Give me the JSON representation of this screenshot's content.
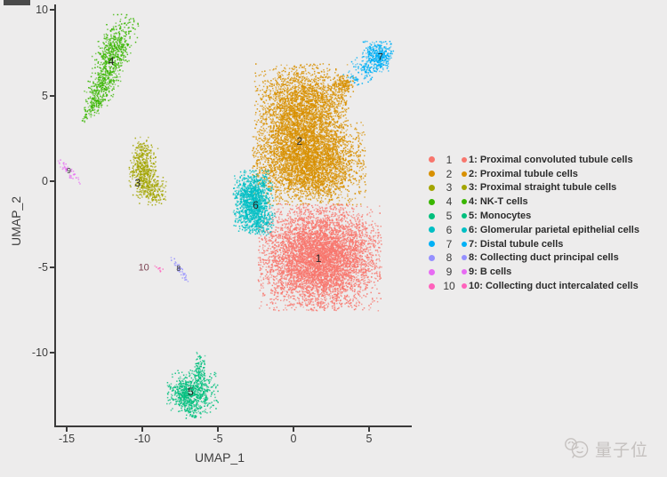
{
  "figure": {
    "background": "#edecec",
    "axis_color": "#3b3b3b"
  },
  "chart_data": {
    "type": "scatter",
    "title": "",
    "xlabel": "UMAP_1",
    "ylabel": "UMAP_2",
    "xlim": [
      -15.7,
      7.8
    ],
    "ylim": [
      -14.3,
      10.3
    ],
    "x_ticks": [
      -15,
      -10,
      -5,
      0,
      5
    ],
    "y_ticks": [
      10,
      5,
      0,
      -5,
      -10
    ],
    "grid": false,
    "legend_position": "right",
    "clusters": [
      {
        "id": "2",
        "name": "Proximal tubule cells",
        "color": "#D89000",
        "label_pos": [
          0.4,
          2.35
        ],
        "label_size": 12,
        "blobs": [
          [
            0.5,
            4.1,
            1.45,
            1.3,
            0,
            2900
          ],
          [
            1.0,
            1.1,
            1.75,
            1.15,
            0,
            3800
          ],
          [
            3.3,
            5.7,
            0.32,
            0.27,
            0,
            150
          ],
          [
            2.5,
            4.8,
            0.7,
            0.5,
            0,
            120
          ]
        ]
      },
      {
        "id": "1",
        "name": "Proximal convoluted tubule cells",
        "color": "#F8766D",
        "label_pos": [
          1.65,
          -4.5
        ],
        "label_size": 12,
        "blobs": [
          [
            1.7,
            -4.4,
            1.9,
            1.45,
            0,
            6000
          ]
        ]
      },
      {
        "id": "6",
        "name": "Glomerular parietal epithelial cells",
        "color": "#00BFC4",
        "label_pos": [
          -2.5,
          -1.4
        ],
        "label_size": 12,
        "blobs": [
          [
            -2.7,
            -1.15,
            0.62,
            0.85,
            0,
            1300
          ],
          [
            -2.3,
            -2.4,
            0.5,
            0.35,
            0,
            150
          ]
        ]
      },
      {
        "id": "7",
        "name": "Distal tubule cells",
        "color": "#00B0F6",
        "label_pos": [
          5.75,
          7.2
        ],
        "label_size": 11,
        "blobs": [
          [
            5.55,
            7.3,
            0.5,
            0.42,
            0,
            430
          ],
          [
            4.7,
            6.5,
            0.5,
            0.22,
            40,
            70
          ],
          [
            4.0,
            6.0,
            0.35,
            0.14,
            40,
            30
          ]
        ]
      },
      {
        "id": "4",
        "name": "NK-T cells",
        "color": "#39B600",
        "label_pos": [
          -12.05,
          7.0
        ],
        "label_size": 12,
        "blobs": [
          [
            -11.8,
            7.9,
            0.55,
            0.95,
            25,
            420
          ],
          [
            -12.4,
            6.3,
            0.48,
            0.85,
            25,
            320
          ],
          [
            -12.95,
            4.95,
            0.3,
            0.6,
            30,
            150
          ],
          [
            -13.5,
            4.1,
            0.14,
            0.4,
            38,
            50
          ]
        ]
      },
      {
        "id": "3",
        "name": "Proximal straight tubule cells",
        "color": "#A3A500",
        "label_pos": [
          -10.3,
          -0.1
        ],
        "label_size": 12,
        "blobs": [
          [
            -9.95,
            0.65,
            0.45,
            0.75,
            0,
            450
          ],
          [
            -9.35,
            -0.55,
            0.42,
            0.38,
            0,
            190
          ],
          [
            -10.05,
            1.95,
            0.22,
            0.32,
            0,
            60
          ]
        ]
      },
      {
        "id": "5",
        "name": "Monocytes",
        "color": "#00BF7D",
        "label_pos": [
          -6.8,
          -12.3
        ],
        "label_size": 12,
        "blobs": [
          [
            -6.7,
            -12.2,
            0.8,
            0.6,
            0,
            580
          ],
          [
            -6.25,
            -10.95,
            0.2,
            0.5,
            0,
            90
          ],
          [
            -7.4,
            -12.5,
            0.45,
            0.4,
            0,
            140
          ],
          [
            -6.6,
            -13.35,
            0.3,
            0.3,
            0,
            70
          ]
        ]
      },
      {
        "id": "9",
        "name": "B cells",
        "color": "#E76BF3",
        "label_pos": [
          -14.85,
          0.6
        ],
        "label_size": 8.5,
        "blobs": [
          [
            -14.9,
            0.6,
            0.5,
            0.11,
            45,
            42
          ]
        ]
      },
      {
        "id": "8",
        "name": "Collecting duct principal cells",
        "color": "#9590FF",
        "label_pos": [
          -7.6,
          -5.1
        ],
        "label_size": 8.5,
        "blobs": [
          [
            -7.6,
            -5.1,
            0.45,
            0.1,
            48,
            38
          ]
        ]
      },
      {
        "id": "10",
        "name": "Collecting duct intercalated cells",
        "color": "#FF62BC",
        "label_pos": [
          -9.9,
          -5.1
        ],
        "label_size": 11,
        "label_color": "#7a4050",
        "blobs": [
          [
            -8.95,
            -5.0,
            0.18,
            0.08,
            30,
            10
          ]
        ]
      }
    ]
  },
  "axes": {
    "x_label": "UMAP_1",
    "y_label": "UMAP_2"
  },
  "legend": {
    "items": [
      {
        "num": "1",
        "text": "1: Proximal convoluted tubule cells",
        "color": "#F8766D"
      },
      {
        "num": "2",
        "text": "2: Proximal tubule cells",
        "color": "#D89000"
      },
      {
        "num": "3",
        "text": "3: Proximal straight tubule cells",
        "color": "#A3A500"
      },
      {
        "num": "4",
        "text": "4: NK-T cells",
        "color": "#39B600"
      },
      {
        "num": "5",
        "text": "5: Monocytes",
        "color": "#00BF7D"
      },
      {
        "num": "6",
        "text": "6: Glomerular parietal epithelial cells",
        "color": "#00BFC4"
      },
      {
        "num": "7",
        "text": "7: Distal tubule cells",
        "color": "#00B0F6"
      },
      {
        "num": "8",
        "text": "8: Collecting duct principal cells",
        "color": "#9590FF"
      },
      {
        "num": "9",
        "text": "9: B cells",
        "color": "#E76BF3"
      },
      {
        "num": "10",
        "text": "10: Collecting duct intercalated cells",
        "color": "#FF62BC"
      }
    ]
  },
  "watermark": {
    "text": "量子位"
  }
}
